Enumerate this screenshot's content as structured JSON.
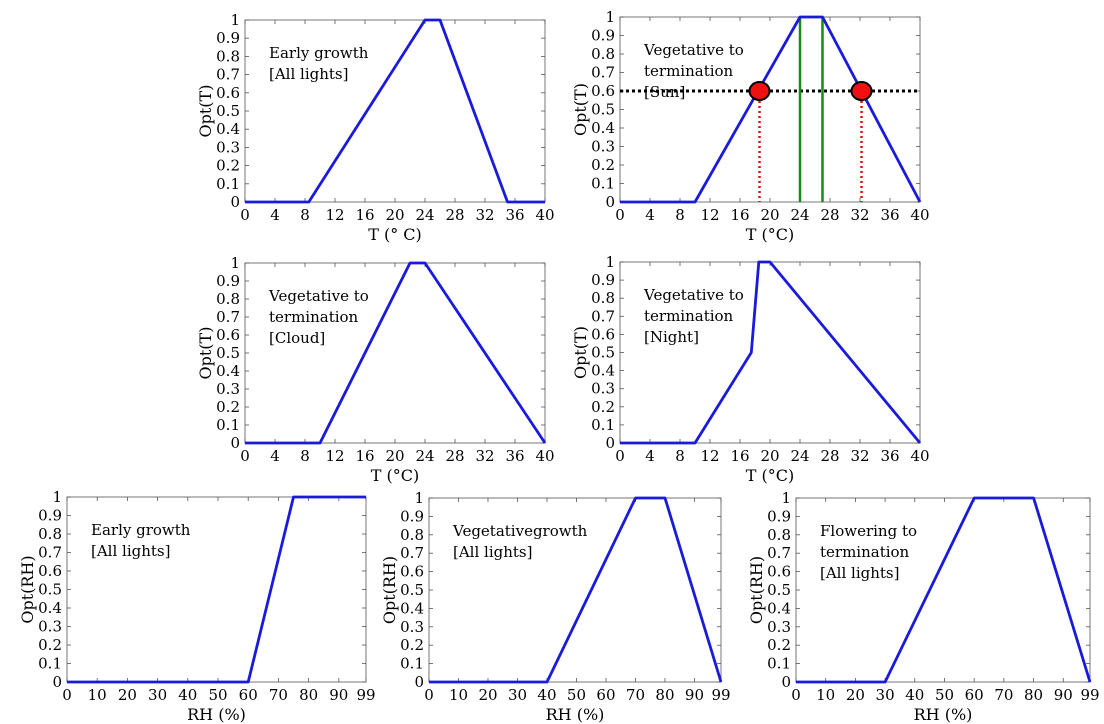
{
  "chart_data": [
    {
      "type": "line",
      "title": "",
      "annotation": [
        "Early growth",
        "[All lights]"
      ],
      "xlabel": "T (° C)",
      "ylabel": "Opt(T)",
      "xlim": [
        0,
        40
      ],
      "ylim": [
        0,
        1
      ],
      "xticks": [
        "0",
        "4",
        "8",
        "12",
        "16",
        "20",
        "24",
        "28",
        "32",
        "36",
        "40"
      ],
      "yticks": [
        "0",
        "0.1",
        "0.2",
        "0.3",
        "0.4",
        "0.5",
        "0.6",
        "0.7",
        "0.8",
        "0.9",
        "1"
      ],
      "series": [
        {
          "color": "#1a1adb",
          "x": [
            0,
            8.5,
            24,
            26,
            35,
            40
          ],
          "y": [
            0,
            0,
            1,
            1,
            0,
            0
          ]
        }
      ]
    },
    {
      "type": "line",
      "title": "",
      "annotation": [
        "Vegetative to",
        "termination",
        "[Sun]"
      ],
      "xlabel": "T (°C)",
      "ylabel": "Opt(T)",
      "xlim": [
        0,
        40
      ],
      "ylim": [
        0,
        1
      ],
      "xticks": [
        "0",
        "4",
        "8",
        "12",
        "16",
        "20",
        "24",
        "28",
        "32",
        "36",
        "40"
      ],
      "yticks": [
        "0",
        "0.1",
        "0.2",
        "0.3",
        "0.4",
        "0.5",
        "0.6",
        "0.7",
        "0.8",
        "0.9",
        "1"
      ],
      "series": [
        {
          "color": "#1a1adb",
          "x": [
            0,
            10,
            24,
            27,
            40
          ],
          "y": [
            0,
            0,
            1,
            1,
            0
          ]
        }
      ],
      "hline": {
        "y": 0.6,
        "color": "#000000"
      },
      "vlines_green": [
        24,
        27
      ],
      "vlines_red": [
        18.6,
        32.2
      ],
      "points": [
        {
          "x": 18.6,
          "y": 0.6
        },
        {
          "x": 32.2,
          "y": 0.6
        }
      ]
    },
    {
      "type": "line",
      "title": "",
      "annotation": [
        "Vegetative to",
        "termination",
        "[Cloud]"
      ],
      "xlabel": "T (°C)",
      "ylabel": "Opt(T)",
      "xlim": [
        0,
        40
      ],
      "ylim": [
        0,
        1
      ],
      "xticks": [
        "0",
        "4",
        "8",
        "12",
        "16",
        "20",
        "24",
        "28",
        "32",
        "36",
        "40"
      ],
      "yticks": [
        "0",
        "0.1",
        "0.2",
        "0.3",
        "0.4",
        "0.5",
        "0.6",
        "0.7",
        "0.8",
        "0.9",
        "1"
      ],
      "series": [
        {
          "color": "#1a1adb",
          "x": [
            0,
            10,
            22,
            24,
            40
          ],
          "y": [
            0,
            0,
            1,
            1,
            0
          ]
        }
      ]
    },
    {
      "type": "line",
      "title": "",
      "annotation": [
        "Vegetative to",
        "termination",
        "[Night]"
      ],
      "xlabel": "T (°C)",
      "ylabel": "Opt(T)",
      "xlim": [
        0,
        40
      ],
      "ylim": [
        0,
        1
      ],
      "xticks": [
        "0",
        "4",
        "8",
        "12",
        "16",
        "20",
        "24",
        "28",
        "32",
        "36",
        "40"
      ],
      "yticks": [
        "0",
        "0.1",
        "0.2",
        "0.3",
        "0.4",
        "0.5",
        "0.6",
        "0.7",
        "0.8",
        "0.9",
        "1"
      ],
      "series": [
        {
          "color": "#1a1adb",
          "x": [
            0,
            10,
            17.5,
            18.5,
            20,
            40
          ],
          "y": [
            0,
            0,
            0.5,
            1,
            1,
            0
          ]
        }
      ]
    },
    {
      "type": "line",
      "title": "",
      "annotation": [
        "Early growth",
        "[All lights]"
      ],
      "xlabel": "RH (%)",
      "ylabel": "Opt(RH)",
      "xlim": [
        0,
        99
      ],
      "ylim": [
        0,
        1
      ],
      "xticks": [
        "0",
        "10",
        "20",
        "30",
        "40",
        "50",
        "60",
        "70",
        "80",
        "90",
        "99"
      ],
      "xtick_values": [
        0,
        10,
        20,
        30,
        40,
        50,
        60,
        70,
        80,
        90,
        99
      ],
      "yticks": [
        "0",
        "0.1",
        "0.2",
        "0.3",
        "0.4",
        "0.5",
        "0.6",
        "0.7",
        "0.8",
        "0.9",
        "1"
      ],
      "series": [
        {
          "color": "#1a1adb",
          "x": [
            0,
            60,
            75,
            99
          ],
          "y": [
            0,
            0,
            1,
            1
          ]
        }
      ]
    },
    {
      "type": "line",
      "title": "",
      "annotation": [
        "Vegetativegrowth",
        "[All lights]"
      ],
      "xlabel": "RH (%)",
      "ylabel": "Opt(RH)",
      "xlim": [
        0,
        99
      ],
      "ylim": [
        0,
        1
      ],
      "xticks": [
        "0",
        "10",
        "20",
        "30",
        "40",
        "50",
        "60",
        "70",
        "80",
        "90",
        "99"
      ],
      "xtick_values": [
        0,
        10,
        20,
        30,
        40,
        50,
        60,
        70,
        80,
        90,
        99
      ],
      "yticks": [
        "0",
        "0.1",
        "0.2",
        "0.3",
        "0.4",
        "0.5",
        "0.6",
        "0.7",
        "0.8",
        "0.9",
        "1"
      ],
      "series": [
        {
          "color": "#1a1adb",
          "x": [
            0,
            40,
            70,
            80,
            99
          ],
          "y": [
            0,
            0,
            1,
            1,
            0
          ]
        }
      ]
    },
    {
      "type": "line",
      "title": "",
      "annotation": [
        "Flowering to",
        "termination",
        "[All lights]"
      ],
      "xlabel": "RH (%)",
      "ylabel": "Opt(RH)",
      "xlim": [
        0,
        99
      ],
      "ylim": [
        0,
        1
      ],
      "xticks": [
        "0",
        "10",
        "20",
        "30",
        "40",
        "50",
        "60",
        "70",
        "80",
        "90",
        "99"
      ],
      "xtick_values": [
        0,
        10,
        20,
        30,
        40,
        50,
        60,
        70,
        80,
        90,
        99
      ],
      "yticks": [
        "0",
        "0.1",
        "0.2",
        "0.3",
        "0.4",
        "0.5",
        "0.6",
        "0.7",
        "0.8",
        "0.9",
        "1"
      ],
      "series": [
        {
          "color": "#1a1adb",
          "x": [
            0,
            30,
            60,
            80,
            99
          ],
          "y": [
            0,
            0,
            1,
            1,
            0
          ]
        }
      ]
    }
  ]
}
